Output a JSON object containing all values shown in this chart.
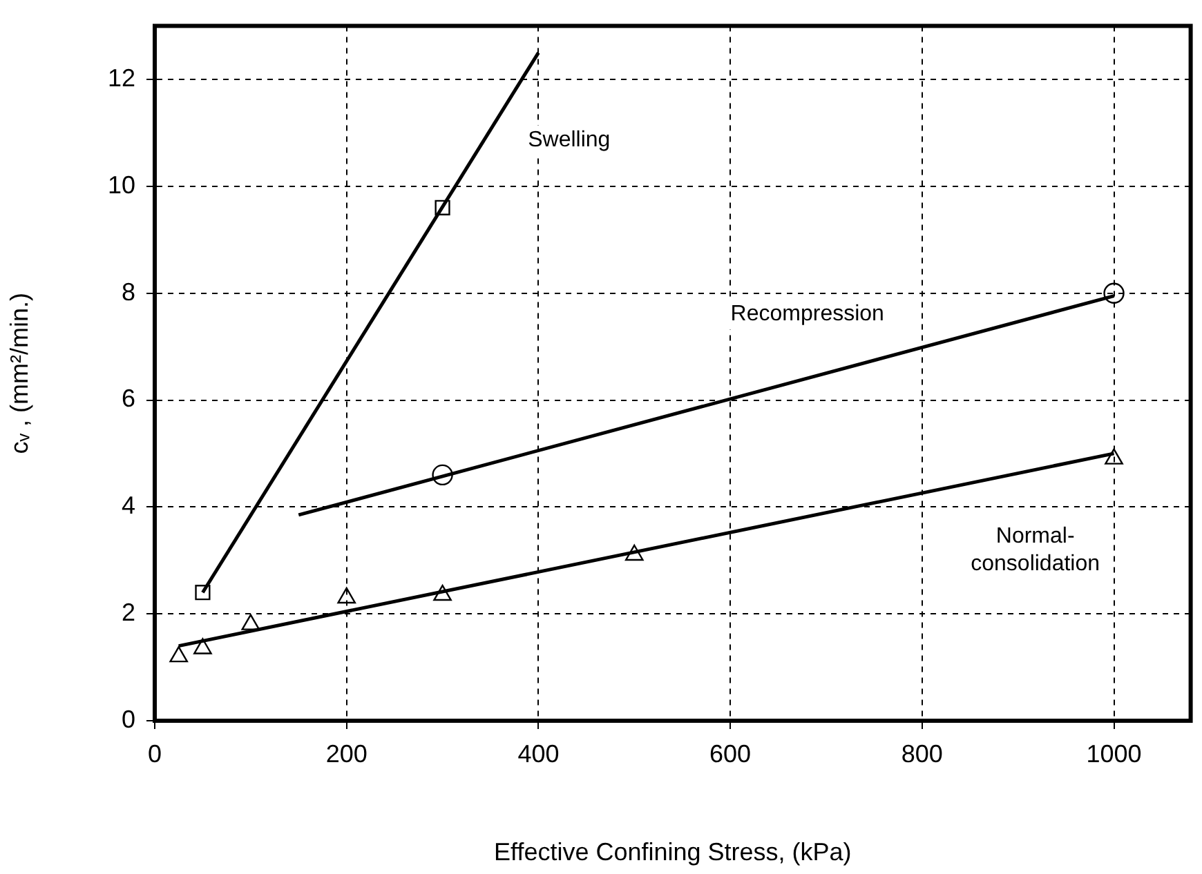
{
  "chart_data": {
    "type": "scatter",
    "xlabel": "Effective Confining Stress, (kPa)",
    "ylabel": "cᵥ , (mm²/min.)",
    "xlim": [
      0,
      1080
    ],
    "xticks": [
      0,
      200,
      400,
      600,
      800,
      1000
    ],
    "ylim": [
      0,
      13
    ],
    "yticks": [
      0,
      2,
      4,
      6,
      8,
      10,
      12
    ],
    "grid": true,
    "legend": false,
    "series": [
      {
        "type": "scatter",
        "marker": "square",
        "color": "#000000",
        "x": [
          50,
          300
        ],
        "values": [
          2.4,
          9.6
        ]
      },
      {
        "type": "line",
        "marker": "none",
        "color": "#000000",
        "x": [
          50,
          400
        ],
        "values": [
          2.4,
          12.5
        ]
      },
      {
        "type": "scatter",
        "marker": "circle",
        "color": "#000000",
        "x": [
          300,
          1000
        ],
        "values": [
          4.6,
          8.0
        ]
      },
      {
        "type": "line",
        "marker": "none",
        "color": "#000000",
        "x": [
          150,
          1000
        ],
        "values": [
          3.85,
          7.95
        ]
      },
      {
        "type": "scatter",
        "marker": "triangle",
        "color": "#000000",
        "x": [
          25,
          50,
          100,
          200,
          300,
          500,
          1000
        ],
        "values": [
          1.2,
          1.35,
          1.8,
          2.3,
          2.35,
          3.1,
          4.9
        ]
      },
      {
        "type": "line",
        "marker": "none",
        "color": "#000000",
        "x": [
          25,
          1000
        ],
        "values": [
          1.4,
          5.0
        ]
      }
    ],
    "annotations": [
      "Swelling",
      "Recompression",
      "Normal-\nconsolidation"
    ]
  }
}
